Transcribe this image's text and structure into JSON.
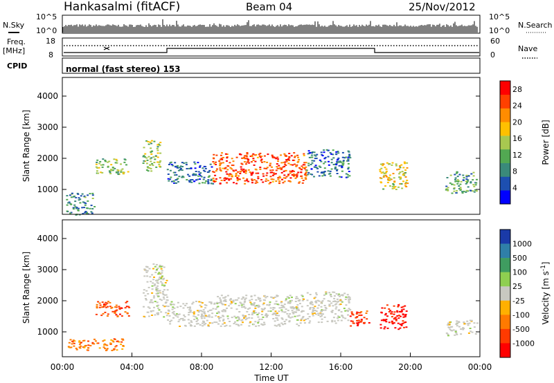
{
  "header": {
    "station": "Hankasalmi (fitACF)",
    "beam": "Beam 04",
    "date": "25/Nov/2012"
  },
  "sky_panel": {
    "left_label": "N.Sky",
    "right_label": "N.Search",
    "top_tick": "10^5",
    "bottom_tick": "10^0"
  },
  "freq_panel": {
    "left_label_1": "Freq.",
    "left_label_2": "[MHz]",
    "left_tick_top": "18",
    "left_tick_bottom": "8",
    "right_label": "Nave",
    "right_tick_top": "60",
    "right_tick_bottom": "0"
  },
  "cpid_panel": {
    "label": "CPID",
    "mode_text": "normal (fast stereo) 153"
  },
  "x_axis": {
    "label": "Time UT",
    "ticks": [
      "00:00",
      "04:00",
      "08:00",
      "12:00",
      "16:00",
      "20:00",
      "00:00"
    ]
  },
  "colors": {
    "power_scale": [
      "#0000ff",
      "#1d4fb0",
      "#3a8a7a",
      "#52a852",
      "#a8c850",
      "#ffc000",
      "#ff8c00",
      "#ff4000",
      "#ff0000"
    ],
    "velocity_scale": [
      "#1a3aa8",
      "#2f7fa8",
      "#3f9c60",
      "#8fcf50",
      "#c8c8c0",
      "#ffb000",
      "#ff7a00",
      "#ff3a00",
      "#ff0000"
    ]
  },
  "chart_data": [
    {
      "type": "heatmap",
      "title": "Power",
      "xlabel": "Time UT",
      "ylabel": "Slant Range [km]",
      "xlim": [
        "00:00",
        "24:00"
      ],
      "ylim": [
        200,
        4600
      ],
      "yticks": [
        "1000",
        "2000",
        "3000",
        "4000"
      ],
      "colorbar": {
        "label": "Power [dB]",
        "ticks": [
          "4",
          "8",
          "12",
          "16",
          "20",
          "24",
          "28"
        ],
        "range": [
          0,
          30
        ]
      },
      "echo_regions": [
        {
          "t_start": 0.2,
          "t_end": 1.8,
          "r_min": 200,
          "r_max": 900,
          "level": 8
        },
        {
          "t_start": 1.9,
          "t_end": 3.8,
          "r_min": 1500,
          "r_max": 2000,
          "level": 14
        },
        {
          "t_start": 4.6,
          "t_end": 5.6,
          "r_min": 1600,
          "r_max": 2600,
          "level": 14
        },
        {
          "t_start": 6.0,
          "t_end": 8.6,
          "r_min": 1200,
          "r_max": 1900,
          "level": 6
        },
        {
          "t_start": 8.6,
          "t_end": 14.0,
          "r_min": 1200,
          "r_max": 2200,
          "level": 26
        },
        {
          "t_start": 14.0,
          "t_end": 16.5,
          "r_min": 1400,
          "r_max": 2300,
          "level": 6
        },
        {
          "t_start": 18.2,
          "t_end": 19.8,
          "r_min": 1000,
          "r_max": 1900,
          "level": 18
        },
        {
          "t_start": 22.0,
          "t_end": 23.8,
          "r_min": 900,
          "r_max": 1600,
          "level": 10
        }
      ]
    },
    {
      "type": "heatmap",
      "title": "Velocity",
      "xlabel": "Time UT",
      "ylabel": "Slant Range [km]",
      "xlim": [
        "00:00",
        "24:00"
      ],
      "ylim": [
        200,
        4600
      ],
      "yticks": [
        "1000",
        "2000",
        "3000",
        "4000"
      ],
      "colorbar": {
        "label": "Velocity [m s^-1]",
        "ticks": [
          "1000",
          "500",
          "100",
          "25",
          "-25",
          "-100",
          "-500",
          "-1000"
        ],
        "range": [
          -1000,
          1000
        ]
      },
      "echo_regions": [
        {
          "t_start": 0.2,
          "t_end": 3.5,
          "r_min": 400,
          "r_max": 800,
          "velocity": -300
        },
        {
          "t_start": 1.9,
          "t_end": 3.8,
          "r_min": 1500,
          "r_max": 2000,
          "velocity": -400
        },
        {
          "t_start": 4.6,
          "t_end": 6.0,
          "r_min": 1500,
          "r_max": 3200,
          "velocity": 0
        },
        {
          "t_start": 6.0,
          "t_end": 8.6,
          "r_min": 1200,
          "r_max": 2000,
          "velocity": 0
        },
        {
          "t_start": 8.6,
          "t_end": 14.0,
          "r_min": 1200,
          "r_max": 2200,
          "velocity": 0
        },
        {
          "t_start": 14.0,
          "t_end": 16.5,
          "r_min": 1300,
          "r_max": 2300,
          "velocity": 0
        },
        {
          "t_start": 16.5,
          "t_end": 17.6,
          "r_min": 1200,
          "r_max": 1700,
          "velocity": -500
        },
        {
          "t_start": 18.2,
          "t_end": 19.8,
          "r_min": 1100,
          "r_max": 1900,
          "velocity": -600
        },
        {
          "t_start": 22.0,
          "t_end": 23.8,
          "r_min": 900,
          "r_max": 1400,
          "velocity": 0
        }
      ]
    }
  ]
}
